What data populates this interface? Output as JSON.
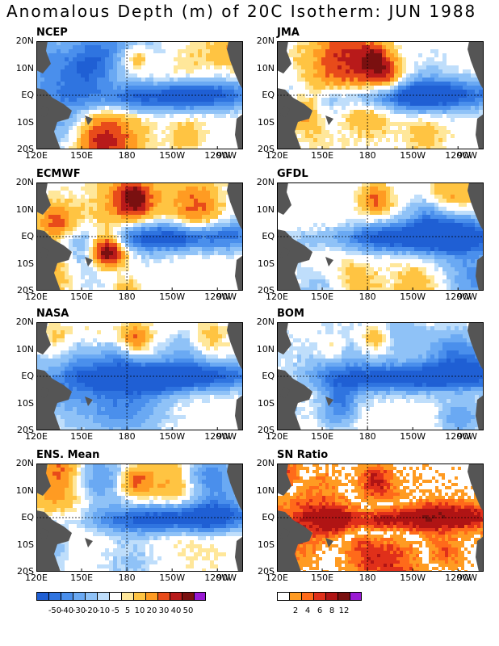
{
  "title": "Anomalous Depth (m) of 20C Isotherm: JUN 1988",
  "lat_labels": [
    "20N",
    "10N",
    "EQ",
    "10S",
    "20S"
  ],
  "lon_labels": [
    "120E",
    "150E",
    "180",
    "150W",
    "120W",
    "90W"
  ],
  "panels": [
    {
      "name": "NCEP",
      "seed": 11,
      "type": "anom"
    },
    {
      "name": "JMA",
      "seed": 23,
      "type": "anom"
    },
    {
      "name": "ECMWF",
      "seed": 37,
      "type": "anom"
    },
    {
      "name": "GFDL",
      "seed": 41,
      "type": "anom"
    },
    {
      "name": "NASA",
      "seed": 53,
      "type": "anom"
    },
    {
      "name": "BOM",
      "seed": 67,
      "type": "anom"
    },
    {
      "name": "ENS. Mean",
      "seed": 79,
      "type": "anom"
    },
    {
      "name": "SN Ratio",
      "seed": 91,
      "type": "ratio"
    }
  ],
  "anom_scale": {
    "labels": [
      "-50",
      "-40",
      "-30",
      "-20",
      "-10",
      "-5",
      "5",
      "10",
      "20",
      "30",
      "40",
      "50"
    ],
    "colors": [
      "#1f5fd4",
      "#2f74e0",
      "#4a8fec",
      "#6aa9f3",
      "#8fc2f7",
      "#bfdefb",
      "#ffffff",
      "#ffe79a",
      "#ffc442",
      "#ff9b22",
      "#e84b1a",
      "#b81a1a",
      "#7a1010",
      "#9a1ad4"
    ]
  },
  "ratio_scale": {
    "labels": [
      "2",
      "4",
      "6",
      "8",
      "12"
    ],
    "colors": [
      "#ffffff",
      "#ff9b22",
      "#ff6a1a",
      "#e0301a",
      "#b01414",
      "#7a1010",
      "#9a1ad4"
    ]
  },
  "colors": {
    "land": "#555555",
    "missing": "#ffffff"
  }
}
